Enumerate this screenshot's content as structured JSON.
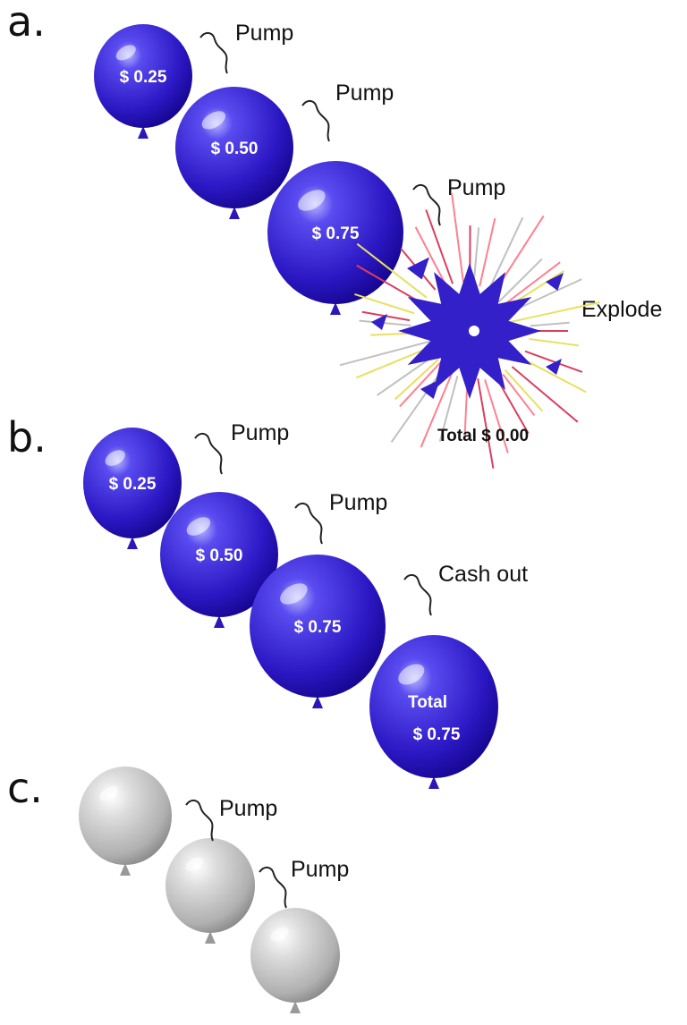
{
  "panels": [
    {
      "label": "a.",
      "balloons": [
        "$ 0.25",
        "$ 0.50",
        "$ 0.75"
      ],
      "actions": [
        "Pump",
        "Pump",
        "Pump",
        "Explode"
      ],
      "total": "Total $ 0.00"
    },
    {
      "label": "b.",
      "balloons": [
        "$ 0.25",
        "$ 0.50",
        "$ 0.75"
      ],
      "actions": [
        "Pump",
        "Pump",
        "Cash out"
      ],
      "total": [
        "Total",
        "$ 0.75"
      ]
    },
    {
      "label": "c.",
      "actions": [
        "Pump",
        "Pump"
      ]
    }
  ]
}
